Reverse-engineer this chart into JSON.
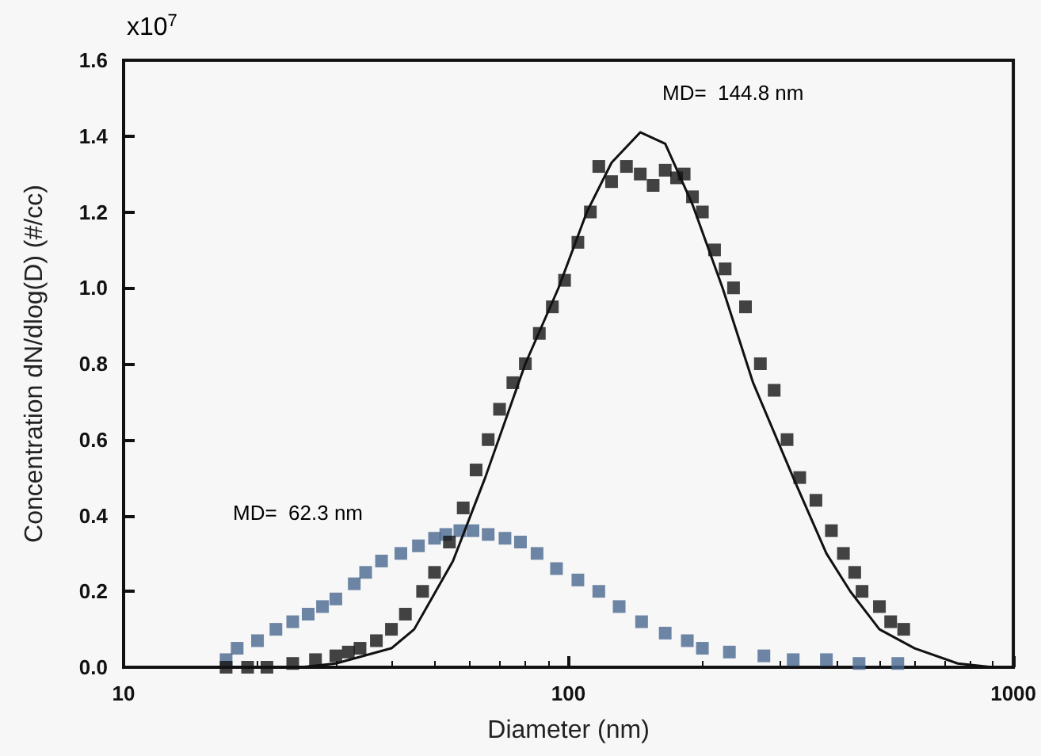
{
  "chart_data": {
    "type": "scatter",
    "xlabel": "Diameter (nm)",
    "ylabel": "Concentration dN/dlog(D) (#/cc)",
    "log": "x",
    "xlim": [
      10,
      1000
    ],
    "xticks": [
      10,
      100,
      1000
    ],
    "ylim": [
      0,
      1.6
    ],
    "yticks": [
      {
        "value": 0,
        "label": "0.0"
      },
      {
        "value": 0.2,
        "label": "0.2"
      },
      {
        "value": 0.4,
        "label": "0.4"
      },
      {
        "value": 0.6,
        "label": "0.6"
      },
      {
        "value": 0.8,
        "label": "0.8"
      },
      {
        "value": 1.0,
        "label": "1.0"
      },
      {
        "value": 1.2,
        "label": "1.2"
      },
      {
        "value": 1.4,
        "label": "1.4"
      },
      {
        "value": 1.6,
        "label": "1.6"
      }
    ],
    "grid": false,
    "marker": "square",
    "annotations": [
      "x10$^{7}$",
      "MD=  144.8 nm",
      "MD=  62.3 nm"
    ],
    "series": [
      {
        "color": "#4a6890",
        "x": [
          17,
          18,
          20,
          22,
          24,
          26,
          28,
          30,
          33,
          35,
          38,
          42,
          46,
          50,
          53,
          57,
          61,
          66,
          72,
          78,
          85,
          94,
          105,
          117,
          130,
          146,
          165,
          185,
          200,
          230,
          275,
          320,
          380,
          450,
          550
        ],
        "values": [
          0.02,
          0.05,
          0.07,
          0.1,
          0.12,
          0.14,
          0.16,
          0.18,
          0.22,
          0.25,
          0.28,
          0.3,
          0.32,
          0.34,
          0.35,
          0.36,
          0.36,
          0.35,
          0.34,
          0.33,
          0.3,
          0.26,
          0.23,
          0.2,
          0.16,
          0.12,
          0.09,
          0.07,
          0.05,
          0.04,
          0.03,
          0.02,
          0.02,
          0.01,
          0.01
        ]
      },
      {
        "color": "#141414",
        "x": [
          17,
          19,
          21,
          24,
          27,
          30,
          32,
          34,
          37,
          40,
          43,
          47,
          50,
          54,
          58,
          62,
          66,
          70,
          75,
          80,
          86,
          92,
          98,
          105,
          112,
          117,
          125,
          135,
          145,
          155,
          165,
          175,
          182,
          190,
          200,
          213,
          225,
          235,
          250,
          270,
          290,
          310,
          331,
          360,
          390,
          415,
          440,
          457,
          500,
          530,
          567
        ],
        "values": [
          0.0,
          0.0,
          0.0,
          0.01,
          0.02,
          0.03,
          0.04,
          0.05,
          0.07,
          0.1,
          0.14,
          0.2,
          0.25,
          0.33,
          0.42,
          0.52,
          0.6,
          0.68,
          0.75,
          0.8,
          0.88,
          0.95,
          1.02,
          1.12,
          1.2,
          1.32,
          1.28,
          1.32,
          1.3,
          1.27,
          1.31,
          1.29,
          1.3,
          1.24,
          1.2,
          1.1,
          1.05,
          1.0,
          0.95,
          0.8,
          0.73,
          0.6,
          0.5,
          0.44,
          0.36,
          0.3,
          0.25,
          0.2,
          0.16,
          0.12,
          0.1
        ]
      },
      {
        "type": "line",
        "marker": "none",
        "color": "#111111",
        "x": [
          17,
          25,
          30,
          40,
          45,
          55,
          65,
          80,
          95,
          110,
          125,
          145,
          165,
          190,
          222,
          260,
          320,
          380,
          430,
          500,
          600,
          750,
          900
        ],
        "values": [
          0.0,
          0.0,
          0.01,
          0.05,
          0.1,
          0.28,
          0.5,
          0.8,
          1.0,
          1.2,
          1.33,
          1.41,
          1.38,
          1.22,
          1.0,
          0.75,
          0.5,
          0.3,
          0.2,
          0.1,
          0.05,
          0.01,
          0.0
        ]
      }
    ]
  }
}
